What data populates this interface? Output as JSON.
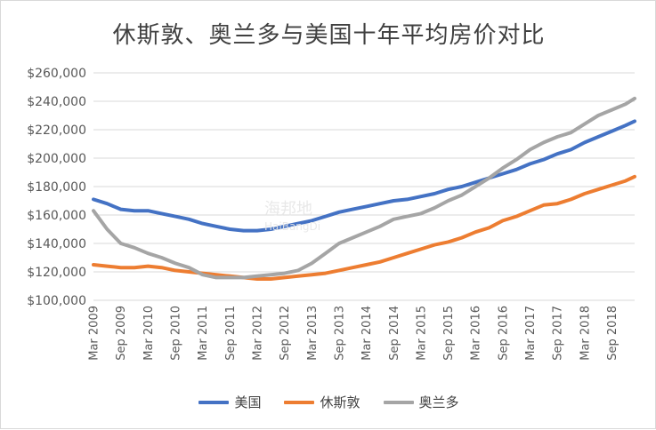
{
  "chart_data": {
    "type": "line",
    "title": "休斯敦、奥兰多与美国十年平均房价对比",
    "ylim": [
      100000,
      260000
    ],
    "yticks": [
      "$100,000",
      "$120,000",
      "$140,000",
      "$160,000",
      "$180,000",
      "$200,000",
      "$220,000",
      "$240,000",
      "$260,000"
    ],
    "x_tick_labels": [
      "Mar 2009",
      "Sep 2009",
      "Mar 2010",
      "Sep 2010",
      "Mar 2011",
      "Sep 2011",
      "Mar 2012",
      "Sep 2012",
      "Mar 2013",
      "Sep 2013",
      "Mar 2014",
      "Sep 2014",
      "Mar 2015",
      "Sep 2015",
      "Mar 2016",
      "Sep 2016",
      "Mar 2017",
      "Sep 2017",
      "Mar 2018",
      "Sep 2018"
    ],
    "x_tick_values": [
      0,
      6,
      12,
      18,
      24,
      30,
      36,
      42,
      48,
      54,
      60,
      66,
      72,
      78,
      84,
      90,
      96,
      102,
      108,
      114
    ],
    "x_range": [
      0,
      119
    ],
    "grid": true,
    "legend_position": "bottom",
    "series": [
      {
        "name": "美国",
        "color": "#4472C4",
        "points": [
          [
            0,
            171000
          ],
          [
            3,
            168000
          ],
          [
            6,
            164000
          ],
          [
            9,
            163000
          ],
          [
            12,
            163000
          ],
          [
            15,
            161000
          ],
          [
            18,
            159000
          ],
          [
            21,
            157000
          ],
          [
            24,
            154000
          ],
          [
            27,
            152000
          ],
          [
            30,
            150000
          ],
          [
            33,
            149000
          ],
          [
            36,
            149000
          ],
          [
            39,
            150000
          ],
          [
            42,
            152000
          ],
          [
            45,
            154000
          ],
          [
            48,
            156000
          ],
          [
            51,
            159000
          ],
          [
            54,
            162000
          ],
          [
            57,
            164000
          ],
          [
            60,
            166000
          ],
          [
            63,
            168000
          ],
          [
            66,
            170000
          ],
          [
            69,
            171000
          ],
          [
            72,
            173000
          ],
          [
            75,
            175000
          ],
          [
            78,
            178000
          ],
          [
            81,
            180000
          ],
          [
            84,
            183000
          ],
          [
            87,
            186000
          ],
          [
            90,
            189000
          ],
          [
            93,
            192000
          ],
          [
            96,
            196000
          ],
          [
            99,
            199000
          ],
          [
            102,
            203000
          ],
          [
            105,
            206000
          ],
          [
            108,
            211000
          ],
          [
            111,
            215000
          ],
          [
            114,
            219000
          ],
          [
            117,
            223000
          ],
          [
            119,
            226000
          ]
        ]
      },
      {
        "name": "休斯敦",
        "color": "#ED7D31",
        "points": [
          [
            0,
            125000
          ],
          [
            3,
            124000
          ],
          [
            6,
            123000
          ],
          [
            9,
            123000
          ],
          [
            12,
            124000
          ],
          [
            15,
            123000
          ],
          [
            18,
            121000
          ],
          [
            21,
            120000
          ],
          [
            24,
            119000
          ],
          [
            27,
            118000
          ],
          [
            30,
            117000
          ],
          [
            33,
            116000
          ],
          [
            36,
            115000
          ],
          [
            39,
            115000
          ],
          [
            42,
            116000
          ],
          [
            45,
            117000
          ],
          [
            48,
            118000
          ],
          [
            51,
            119000
          ],
          [
            54,
            121000
          ],
          [
            57,
            123000
          ],
          [
            60,
            125000
          ],
          [
            63,
            127000
          ],
          [
            66,
            130000
          ],
          [
            69,
            133000
          ],
          [
            72,
            136000
          ],
          [
            75,
            139000
          ],
          [
            78,
            141000
          ],
          [
            81,
            144000
          ],
          [
            84,
            148000
          ],
          [
            87,
            151000
          ],
          [
            90,
            156000
          ],
          [
            93,
            159000
          ],
          [
            96,
            163000
          ],
          [
            99,
            167000
          ],
          [
            102,
            168000
          ],
          [
            105,
            171000
          ],
          [
            108,
            175000
          ],
          [
            111,
            178000
          ],
          [
            114,
            181000
          ],
          [
            117,
            184000
          ],
          [
            119,
            187000
          ]
        ]
      },
      {
        "name": "奥兰多",
        "color": "#A5A5A5",
        "points": [
          [
            0,
            163000
          ],
          [
            3,
            150000
          ],
          [
            6,
            140000
          ],
          [
            9,
            137000
          ],
          [
            12,
            133000
          ],
          [
            15,
            130000
          ],
          [
            18,
            126000
          ],
          [
            21,
            123000
          ],
          [
            24,
            118000
          ],
          [
            27,
            116000
          ],
          [
            30,
            116000
          ],
          [
            33,
            116000
          ],
          [
            36,
            117000
          ],
          [
            39,
            118000
          ],
          [
            42,
            119000
          ],
          [
            45,
            121000
          ],
          [
            48,
            126000
          ],
          [
            51,
            133000
          ],
          [
            54,
            140000
          ],
          [
            57,
            144000
          ],
          [
            60,
            148000
          ],
          [
            63,
            152000
          ],
          [
            66,
            157000
          ],
          [
            69,
            159000
          ],
          [
            72,
            161000
          ],
          [
            75,
            165000
          ],
          [
            78,
            170000
          ],
          [
            81,
            174000
          ],
          [
            84,
            180000
          ],
          [
            87,
            186000
          ],
          [
            90,
            193000
          ],
          [
            93,
            199000
          ],
          [
            96,
            206000
          ],
          [
            99,
            211000
          ],
          [
            102,
            215000
          ],
          [
            105,
            218000
          ],
          [
            108,
            224000
          ],
          [
            111,
            230000
          ],
          [
            114,
            234000
          ],
          [
            117,
            238000
          ],
          [
            119,
            242000
          ]
        ]
      }
    ]
  },
  "watermark": {
    "line1": "海邦地",
    "line2": "HaiBangDi"
  }
}
